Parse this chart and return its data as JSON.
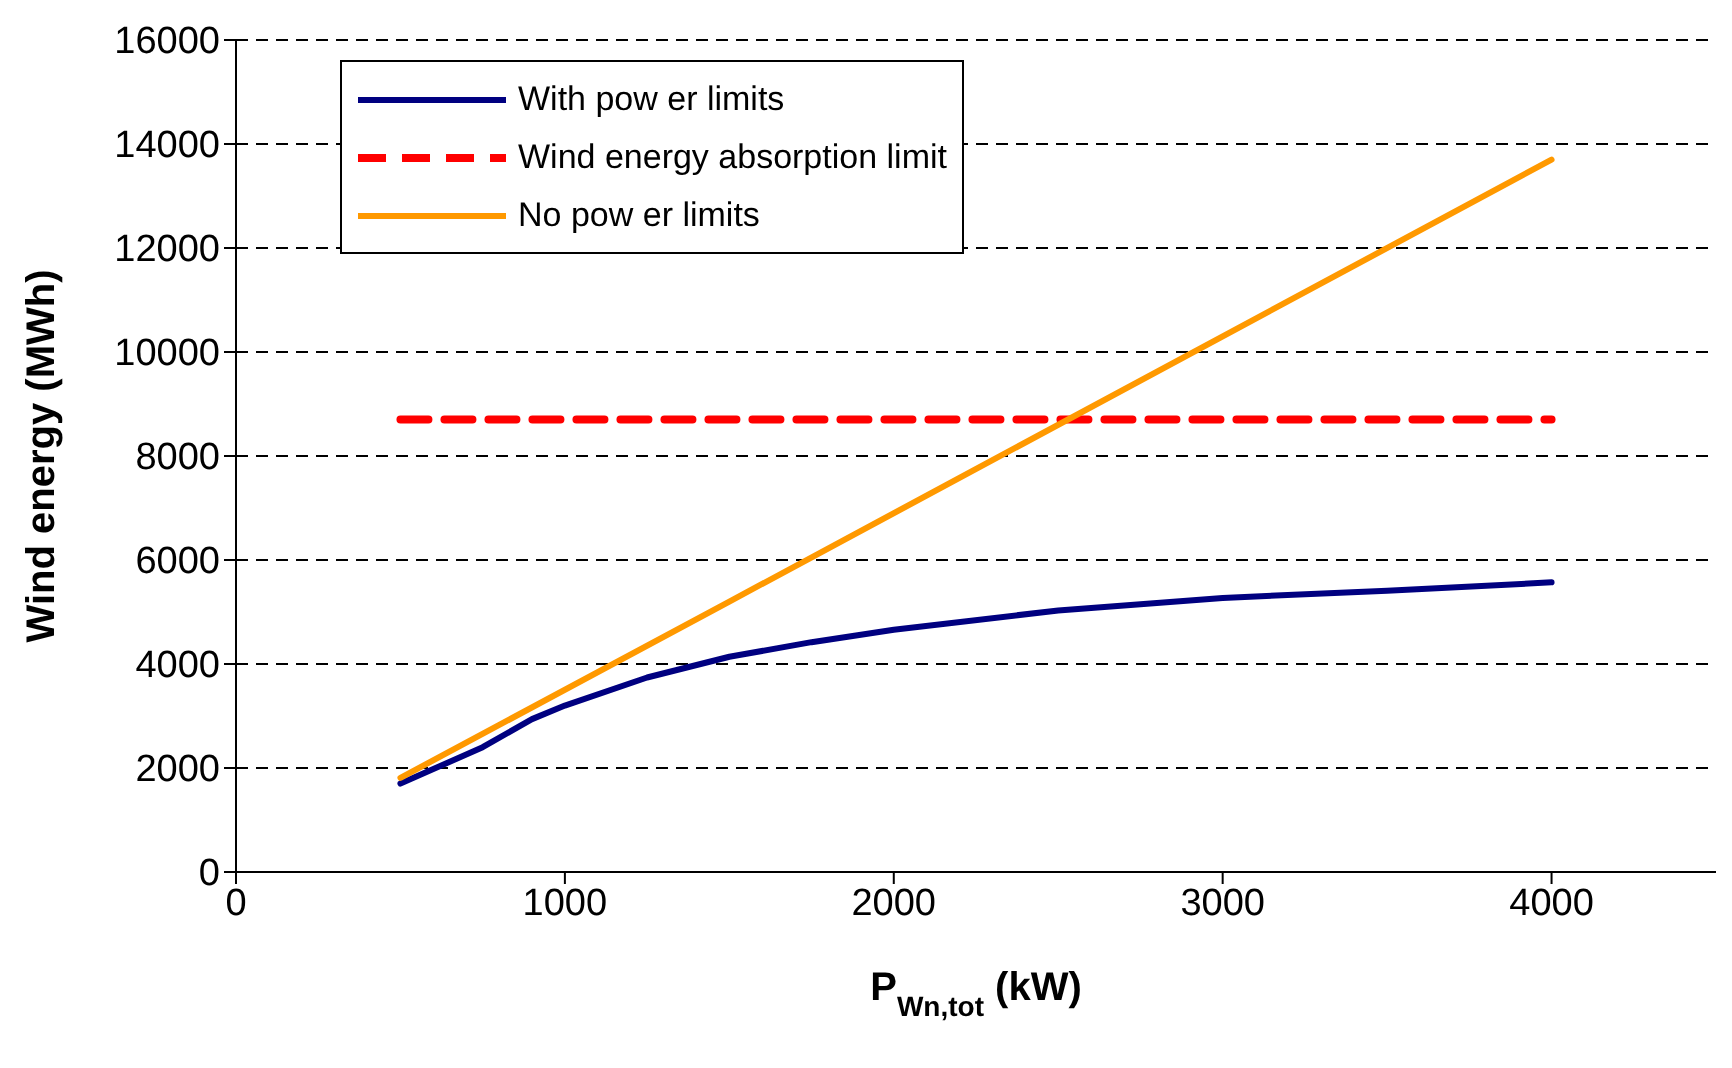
{
  "chart_data": {
    "type": "line",
    "xlabel": "P$_{Wn,tot}$ (kW)",
    "ylabel": "Wind energy (MWh)",
    "xlim": [
      0,
      4500
    ],
    "xticks": [
      0,
      1000,
      2000,
      3000,
      4000
    ],
    "ylim": [
      0,
      16000
    ],
    "yticks": [
      0,
      2000,
      4000,
      6000,
      8000,
      10000,
      12000,
      14000,
      16000
    ],
    "grid": "y",
    "legend": "top left",
    "series": [
      {
        "name": "With pow er limits",
        "color": "#000080",
        "x": [
          500,
          750,
          900,
          1000,
          1250,
          1500,
          1750,
          2000,
          2500,
          3000,
          3500,
          4000
        ],
        "values": [
          1700,
          2400,
          2940,
          3200,
          3740,
          4140,
          4420,
          4660,
          5030,
          5270,
          5410,
          5570
        ]
      },
      {
        "name": "Wind energy absorption limit",
        "color": "#ff0000",
        "line_style": "dashed",
        "x": [
          500,
          4000
        ],
        "values": [
          8700,
          8700
        ]
      },
      {
        "name": "No pow er limits",
        "color": "#ff9900",
        "x": [
          500,
          1500,
          4000
        ],
        "values": [
          1810,
          5200,
          13700
        ]
      }
    ]
  }
}
